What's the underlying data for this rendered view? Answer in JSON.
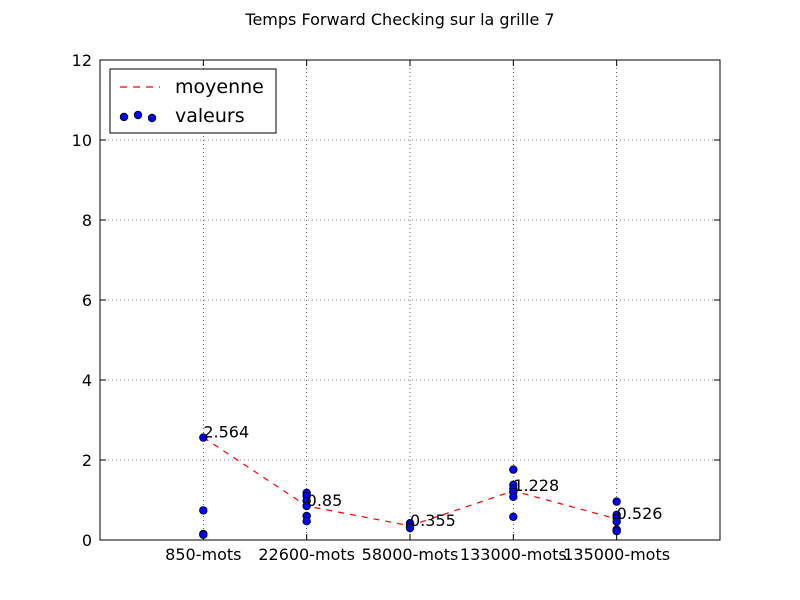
{
  "chart_data": {
    "type": "scatter",
    "title": "Temps Forward Checking sur la grille 7",
    "xlabel": "",
    "ylabel": "",
    "categories": [
      "850-mots",
      "22600-mots",
      "58000-mots",
      "133000-mots",
      "135000-mots"
    ],
    "ylim": [
      0,
      12
    ],
    "yticks": [
      0,
      2,
      4,
      6,
      8,
      10,
      12
    ],
    "grid": true,
    "legend_position": "top-left",
    "series": [
      {
        "name": "moyenne",
        "kind": "line",
        "style": "dashed",
        "color": "#ff0000",
        "values": [
          2.564,
          0.85,
          0.355,
          1.228,
          0.526
        ],
        "labels": [
          "2.564",
          "0.85",
          "0.355",
          "1.228",
          "0.526"
        ]
      },
      {
        "name": "valeurs",
        "kind": "scatter",
        "color": "#0000ff",
        "points": [
          [
            0,
            2.56
          ],
          [
            0,
            0.74
          ],
          [
            0,
            0.15
          ],
          [
            0,
            0.13
          ],
          [
            1,
            1.18
          ],
          [
            1,
            1.1
          ],
          [
            1,
            0.98
          ],
          [
            1,
            0.85
          ],
          [
            1,
            0.6
          ],
          [
            1,
            0.47
          ],
          [
            2,
            0.42
          ],
          [
            2,
            0.38
          ],
          [
            2,
            0.33
          ],
          [
            2,
            0.3
          ],
          [
            3,
            1.76
          ],
          [
            3,
            1.38
          ],
          [
            3,
            1.28
          ],
          [
            3,
            1.2
          ],
          [
            3,
            1.08
          ],
          [
            3,
            0.58
          ],
          [
            4,
            0.96
          ],
          [
            4,
            0.63
          ],
          [
            4,
            0.55
          ],
          [
            4,
            0.46
          ],
          [
            4,
            0.26
          ],
          [
            4,
            0.22
          ]
        ]
      }
    ]
  }
}
